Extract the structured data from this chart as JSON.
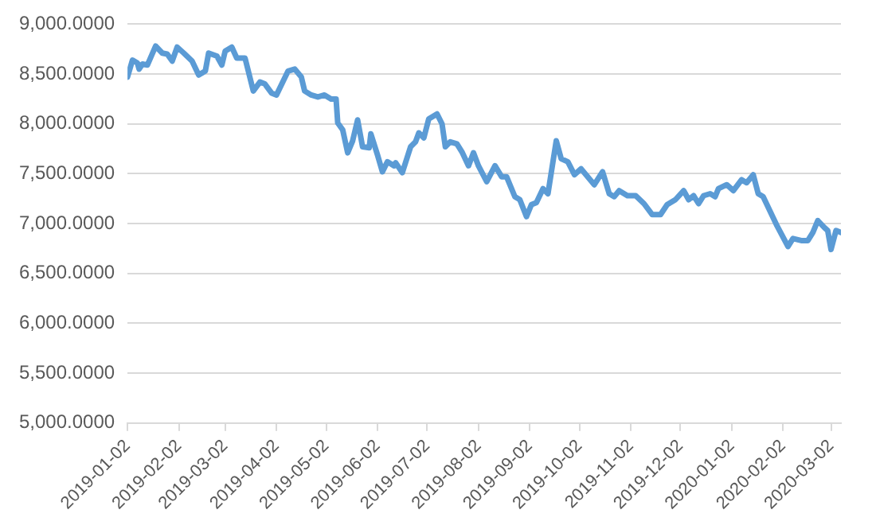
{
  "chart_data": {
    "type": "line",
    "grid": "y",
    "marker": "none",
    "line_style": "solid",
    "xlim": [
      "2019-01-02",
      "2020-03-08"
    ],
    "xticks": [
      "2019-01-02",
      "2019-02-02",
      "2019-03-02",
      "2019-04-02",
      "2019-05-02",
      "2019-06-02",
      "2019-07-02",
      "2019-08-02",
      "2019-09-02",
      "2019-10-02",
      "2019-11-02",
      "2019-12-02",
      "2020-01-02",
      "2020-02-02",
      "2020-03-02"
    ],
    "ylim": [
      5000,
      9000
    ],
    "yticks": [
      {
        "value": 5000,
        "label": "5,000.0000"
      },
      {
        "value": 5500,
        "label": "5,500.0000"
      },
      {
        "value": 6000,
        "label": "6,000.0000"
      },
      {
        "value": 6500,
        "label": "6,500.0000"
      },
      {
        "value": 7000,
        "label": "7,000.0000"
      },
      {
        "value": 7500,
        "label": "7,500.0000"
      },
      {
        "value": 8000,
        "label": "8,000.0000"
      },
      {
        "value": 8500,
        "label": "8,500.0000"
      },
      {
        "value": 9000,
        "label": "9,000.0000"
      }
    ],
    "x": [
      "2019-01-02",
      "2019-01-05",
      "2019-01-08",
      "2019-01-09",
      "2019-01-11",
      "2019-01-14",
      "2019-01-19",
      "2019-01-23",
      "2019-01-26",
      "2019-01-29",
      "2019-02-01",
      "2019-02-05",
      "2019-02-10",
      "2019-02-14",
      "2019-02-18",
      "2019-02-20",
      "2019-02-25",
      "2019-02-28",
      "2019-03-02",
      "2019-03-06",
      "2019-03-09",
      "2019-03-14",
      "2019-03-19",
      "2019-03-23",
      "2019-03-26",
      "2019-03-30",
      "2019-04-02",
      "2019-04-09",
      "2019-04-13",
      "2019-04-17",
      "2019-04-19",
      "2019-04-23",
      "2019-04-27",
      "2019-05-01",
      "2019-05-05",
      "2019-05-08",
      "2019-05-09",
      "2019-05-12",
      "2019-05-15",
      "2019-05-18",
      "2019-05-21",
      "2019-05-24",
      "2019-05-28",
      "2019-05-29",
      "2019-06-02",
      "2019-06-05",
      "2019-06-08",
      "2019-06-12",
      "2019-06-13",
      "2019-06-17",
      "2019-06-22",
      "2019-06-25",
      "2019-06-27",
      "2019-06-30",
      "2019-07-03",
      "2019-07-08",
      "2019-07-11",
      "2019-07-13",
      "2019-07-16",
      "2019-07-20",
      "2019-07-23",
      "2019-07-27",
      "2019-07-30",
      "2019-08-02",
      "2019-08-07",
      "2019-08-12",
      "2019-08-16",
      "2019-08-19",
      "2019-08-24",
      "2019-08-27",
      "2019-08-31",
      "2019-09-03",
      "2019-09-06",
      "2019-09-10",
      "2019-09-13",
      "2019-09-18",
      "2019-09-21",
      "2019-09-25",
      "2019-09-29",
      "2019-10-03",
      "2019-10-11",
      "2019-10-16",
      "2019-10-20",
      "2019-10-23",
      "2019-10-26",
      "2019-10-31",
      "2019-11-05",
      "2019-11-10",
      "2019-11-15",
      "2019-11-20",
      "2019-11-24",
      "2019-11-29",
      "2019-12-04",
      "2019-12-07",
      "2019-12-10",
      "2019-12-13",
      "2019-12-16",
      "2019-12-20",
      "2019-12-23",
      "2019-12-25",
      "2019-12-30",
      "2020-01-03",
      "2020-01-08",
      "2020-01-11",
      "2020-01-15",
      "2020-01-18",
      "2020-01-21",
      "2020-01-29",
      "2020-02-05",
      "2020-02-08",
      "2020-02-13",
      "2020-02-17",
      "2020-02-20",
      "2020-02-23",
      "2020-02-27",
      "2020-02-29",
      "2020-03-02",
      "2020-03-05",
      "2020-03-08"
    ],
    "series": [
      {
        "color": "#5b9bd5",
        "values": [
          8470,
          8640,
          8610,
          8550,
          8600,
          8590,
          8780,
          8710,
          8700,
          8630,
          8770,
          8710,
          8630,
          8490,
          8530,
          8710,
          8680,
          8590,
          8730,
          8770,
          8660,
          8660,
          8330,
          8420,
          8400,
          8310,
          8290,
          8530,
          8550,
          8470,
          8330,
          8290,
          8270,
          8290,
          8250,
          8250,
          8010,
          7940,
          7710,
          7830,
          8040,
          7770,
          7760,
          7900,
          7690,
          7520,
          7620,
          7580,
          7610,
          7510,
          7770,
          7820,
          7910,
          7860,
          8050,
          8100,
          8000,
          7770,
          7820,
          7800,
          7720,
          7580,
          7710,
          7580,
          7420,
          7580,
          7470,
          7470,
          7270,
          7240,
          7070,
          7190,
          7210,
          7350,
          7300,
          7830,
          7650,
          7620,
          7490,
          7550,
          7390,
          7520,
          7300,
          7270,
          7330,
          7280,
          7280,
          7200,
          7090,
          7090,
          7190,
          7240,
          7330,
          7240,
          7280,
          7200,
          7280,
          7300,
          7270,
          7350,
          7390,
          7330,
          7440,
          7410,
          7490,
          7300,
          7270,
          6990,
          6770,
          6850,
          6830,
          6830,
          6910,
          7030,
          6960,
          6930,
          6740,
          6930,
          6910
        ]
      }
    ]
  }
}
